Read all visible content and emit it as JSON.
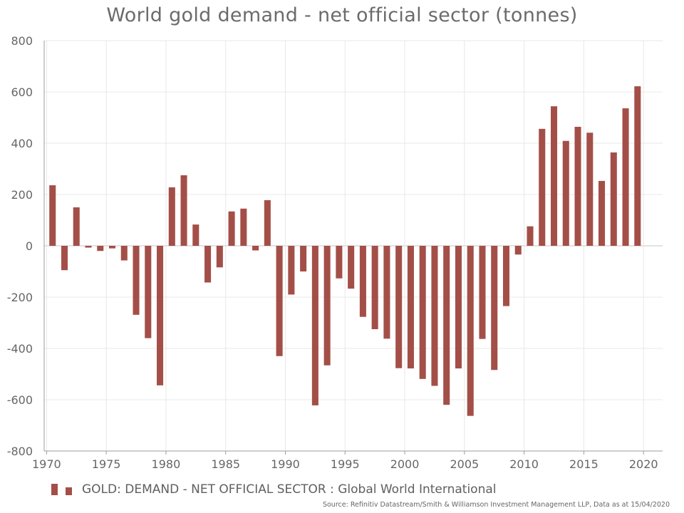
{
  "chart_data": {
    "type": "bar",
    "title": "World gold demand - net official sector (tonnes)",
    "x": [
      1970,
      1971,
      1972,
      1973,
      1974,
      1975,
      1976,
      1977,
      1978,
      1979,
      1980,
      1981,
      1982,
      1983,
      1984,
      1985,
      1986,
      1987,
      1988,
      1989,
      1990,
      1991,
      1992,
      1993,
      1994,
      1995,
      1996,
      1997,
      1998,
      1999,
      2000,
      2001,
      2002,
      2003,
      2004,
      2005,
      2006,
      2007,
      2008,
      2009,
      2010,
      2011,
      2012,
      2013,
      2014,
      2015,
      2016,
      2017,
      2018,
      2019
    ],
    "series": [
      {
        "name": "GOLD: DEMAND - NET OFFICIAL SECTOR : Global World International",
        "values": [
          236,
          -95,
          150,
          -7,
          -20,
          -10,
          -57,
          -269,
          -360,
          -544,
          228,
          275,
          83,
          -143,
          -84,
          134,
          145,
          -18,
          178,
          -430,
          -190,
          -100,
          -622,
          -466,
          -127,
          -167,
          -277,
          -325,
          -362,
          -477,
          -478,
          -519,
          -546,
          -620,
          -478,
          -663,
          -363,
          -484,
          -235,
          -34,
          76,
          456,
          544,
          409,
          464,
          441,
          253,
          364,
          536,
          622
        ]
      }
    ],
    "xlim": [
      1969.8,
      2021.6
    ],
    "ylim": [
      -800,
      800
    ],
    "yticks": [
      -800,
      -600,
      -400,
      -200,
      0,
      200,
      400,
      600,
      800
    ],
    "xticks": [
      1970,
      1975,
      1980,
      1985,
      1990,
      1995,
      2000,
      2005,
      2010,
      2015,
      2020
    ],
    "grid": true,
    "legend_position": "bottom-left",
    "bar_color": "#a34f48",
    "grid_color": "#e8e8e8",
    "axis_color": "#9e9e9e",
    "tick_label_color": "#666666"
  },
  "legend": {
    "label": "GOLD: DEMAND - NET OFFICIAL SECTOR : Global World International"
  },
  "source": "Source: Refinitiv Datastream/Smith & Williamson Investment Management LLP, Data as at 15/04/2020"
}
